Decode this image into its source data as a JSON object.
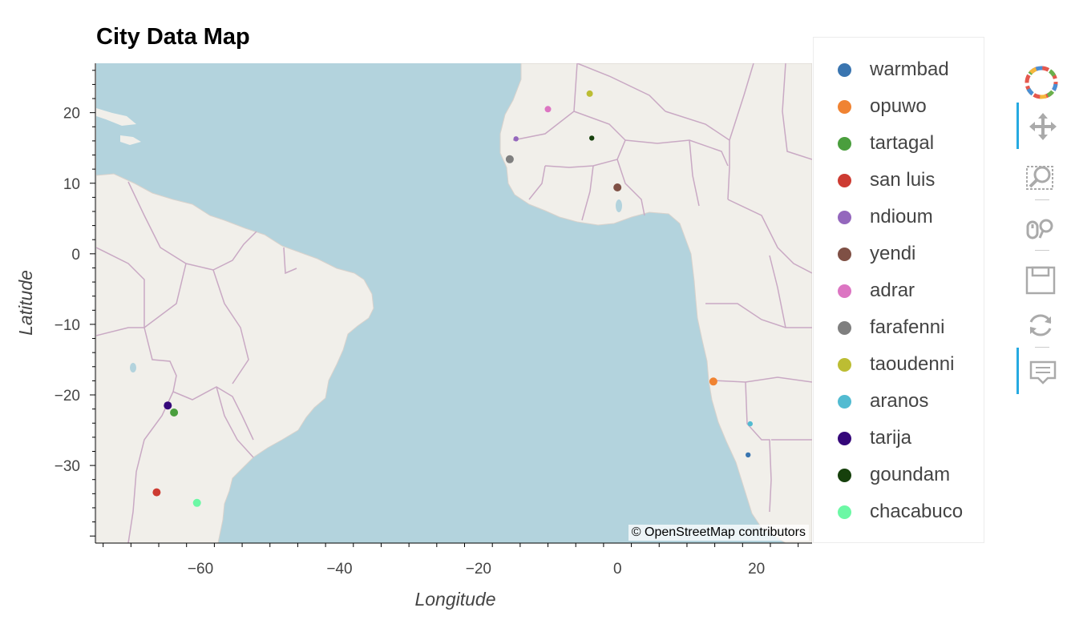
{
  "title": "City Data Map",
  "attribution": "© OpenStreetMap contributors",
  "chart_data": {
    "type": "scatter",
    "title": "City Data Map",
    "xlabel": "Longitude",
    "ylabel": "Latitude",
    "xlim": [
      -75,
      28
    ],
    "ylim": [
      -41,
      27
    ],
    "xticks": [
      -60,
      -40,
      -20,
      0,
      20
    ],
    "yticks": [
      20,
      10,
      0,
      -10,
      -20,
      -30
    ],
    "xtick_labels": [
      "−60",
      "−40",
      "−20",
      "0",
      "20"
    ],
    "ytick_labels": [
      "20",
      "10",
      "0",
      "−10",
      "−20",
      "−30"
    ],
    "legend_position": "right",
    "series": [
      {
        "name": "warmbad",
        "color": "#3a75b0",
        "x": 18.8,
        "y": -28.5,
        "size": "small"
      },
      {
        "name": "opuwo",
        "color": "#f08332",
        "x": 13.8,
        "y": -18.1,
        "size": "large"
      },
      {
        "name": "tartagal",
        "color": "#4a9e3d",
        "x": -63.8,
        "y": -22.5,
        "size": "large"
      },
      {
        "name": "san luis",
        "color": "#cd3b32",
        "x": -66.3,
        "y": -33.8,
        "size": "large"
      },
      {
        "name": "ndioum",
        "color": "#9467bd",
        "x": -14.6,
        "y": 16.3,
        "size": "small"
      },
      {
        "name": "yendi",
        "color": "#7f5045",
        "x": 0.0,
        "y": 9.4,
        "size": "large"
      },
      {
        "name": "adrar",
        "color": "#dc75c2",
        "x": -10.0,
        "y": 20.5,
        "size": "medium"
      },
      {
        "name": "farafenni",
        "color": "#7f7f7f",
        "x": -15.5,
        "y": 13.4,
        "size": "large"
      },
      {
        "name": "taoudenni",
        "color": "#bcbd33",
        "x": -4.0,
        "y": 22.7,
        "size": "medium"
      },
      {
        "name": "aranos",
        "color": "#52bbd1",
        "x": 19.1,
        "y": -24.1,
        "size": "small"
      },
      {
        "name": "tarija",
        "color": "#35077a",
        "x": -64.7,
        "y": -21.5,
        "size": "large"
      },
      {
        "name": "goundam",
        "color": "#16400c",
        "x": -3.7,
        "y": 16.4,
        "size": "small"
      },
      {
        "name": "chacabuco",
        "color": "#6cf8a5",
        "x": -60.5,
        "y": -35.3,
        "size": "large"
      }
    ]
  },
  "map": {
    "ocean_color": "#b3d3dd",
    "land_color": "#f1efea",
    "border_color": "#c9a9c4"
  },
  "toolbar": {
    "tools": [
      {
        "icon": "bokeh-logo-icon"
      },
      {
        "icon": "pan-icon",
        "active": true
      },
      {
        "icon": "box-zoom-icon",
        "active": false
      },
      {
        "icon": "wheel-zoom-icon",
        "active": false
      },
      {
        "icon": "save-icon",
        "active": false
      },
      {
        "icon": "reset-icon",
        "active": false
      },
      {
        "icon": "hover-icon",
        "active": true
      }
    ]
  }
}
